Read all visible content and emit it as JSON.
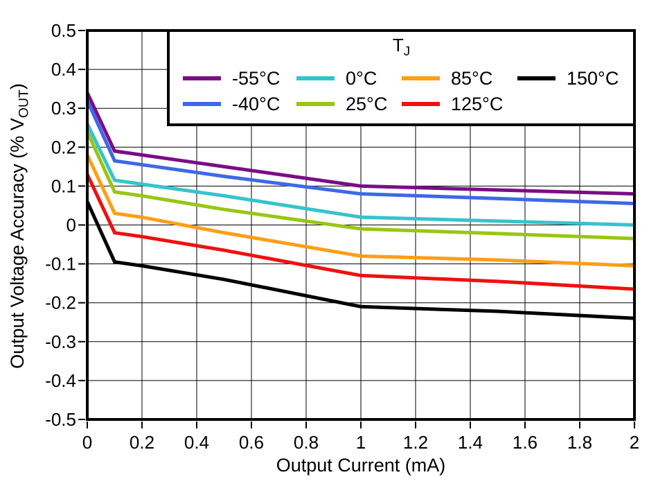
{
  "chart_data": {
    "type": "line",
    "title": "",
    "xlabel": "Output Current (mA)",
    "ylabel": "Output Voltage Accuracy (% VOUT)",
    "ylabel_parts": {
      "pre": "Output Voltage Accuracy (% V",
      "sub": "OUT",
      "post": ")"
    },
    "legend_title": "TJ",
    "legend_title_parts": {
      "main": "T",
      "sub": "J"
    },
    "legend_position": "top",
    "grid": true,
    "xlim": [
      0,
      2
    ],
    "ylim": [
      -0.5,
      0.5
    ],
    "x_ticks": [
      0,
      0.2,
      0.4,
      0.6,
      0.8,
      1,
      1.2,
      1.4,
      1.6,
      1.8,
      2
    ],
    "x_tick_labels": [
      "0",
      "0.2",
      "0.4",
      "0.6",
      "0.8",
      "1",
      "1.2",
      "1.4",
      "1.6",
      "1.8",
      "2"
    ],
    "y_ticks": [
      0.5,
      0.4,
      0.3,
      0.2,
      0.1,
      0,
      -0.1,
      -0.2,
      -0.3,
      -0.4,
      -0.5
    ],
    "y_tick_labels": [
      "0.5",
      "0.4",
      "0.3",
      "0.2",
      "0.1",
      "0",
      "-0.1",
      "-0.2",
      "-0.3",
      "-0.4",
      "-0.5"
    ],
    "x": [
      0,
      0.1,
      0.2,
      0.5,
      1,
      1.5,
      2
    ],
    "series": [
      {
        "name": "-55°C",
        "color": "#7A0D85",
        "values": [
          0.34,
          0.19,
          0.18,
          0.15,
          0.1,
          0.09,
          0.08
        ]
      },
      {
        "name": "-40°C",
        "color": "#3C69E7",
        "values": [
          0.32,
          0.165,
          0.155,
          0.125,
          0.08,
          0.068,
          0.055
        ]
      },
      {
        "name": "0°C",
        "color": "#36C3CC",
        "values": [
          0.26,
          0.115,
          0.105,
          0.075,
          0.02,
          0.01,
          0.0
        ]
      },
      {
        "name": "25°C",
        "color": "#98C613",
        "values": [
          0.24,
          0.085,
          0.075,
          0.04,
          -0.01,
          -0.022,
          -0.035
        ]
      },
      {
        "name": "85°C",
        "color": "#FF9E17",
        "values": [
          0.18,
          0.03,
          0.02,
          -0.02,
          -0.08,
          -0.09,
          -0.105
        ]
      },
      {
        "name": "125°C",
        "color": "#F01010",
        "values": [
          0.13,
          -0.02,
          -0.03,
          -0.065,
          -0.13,
          -0.145,
          -0.165
        ]
      },
      {
        "name": "150°C",
        "color": "#000000",
        "values": [
          0.06,
          -0.095,
          -0.105,
          -0.14,
          -0.21,
          -0.222,
          -0.24
        ]
      }
    ],
    "axis_color": "#000000",
    "grid_color": "#000000",
    "background_color": "#FFFFFF"
  }
}
